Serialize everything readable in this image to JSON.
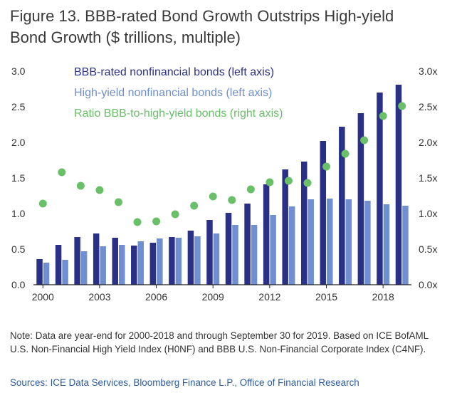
{
  "title_line1": "Figure 13. BBB-rated Bond Growth Outstrips High-yield",
  "title_line2": "Bond Growth ($ trillions, multiple)",
  "note": "Note: Data are year-end for 2000-2018 and through September 30 for 2019. Based on ICE BofAML U.S. Non-Financial High Yield Index (H0NF) and BBB U.S. Non-Financial Corporate Index (C4NF).",
  "sources": "Sources: ICE Data Services, Bloomberg Finance L.P., Office of Financial Research",
  "colors": {
    "bbb": "#2b3087",
    "hy": "#6f8fd0",
    "ratio": "#6abf69",
    "axis_text": "#333333",
    "baseline": "#222222"
  },
  "chart_data": {
    "type": "bar",
    "categories": [
      2000,
      2001,
      2002,
      2003,
      2004,
      2005,
      2006,
      2007,
      2008,
      2009,
      2010,
      2011,
      2012,
      2013,
      2014,
      2015,
      2016,
      2017,
      2018,
      2019
    ],
    "x_tick_labels": [
      "2000",
      "2003",
      "2006",
      "2009",
      "2012",
      "2015",
      "2018"
    ],
    "series": [
      {
        "name": "BBB-rated nonfinancial bonds (left axis)",
        "type": "bar",
        "axis": "left",
        "values": [
          0.36,
          0.56,
          0.67,
          0.72,
          0.66,
          0.55,
          0.59,
          0.67,
          0.76,
          0.91,
          1.01,
          1.14,
          1.41,
          1.62,
          1.73,
          2.02,
          2.22,
          2.41,
          2.7,
          2.81
        ]
      },
      {
        "name": "High-yield nonfinancial bonds (left axis)",
        "type": "bar",
        "axis": "left",
        "values": [
          0.31,
          0.35,
          0.47,
          0.54,
          0.56,
          0.61,
          0.65,
          0.66,
          0.68,
          0.72,
          0.84,
          0.84,
          0.98,
          1.1,
          1.2,
          1.21,
          1.2,
          1.18,
          1.13,
          1.11
        ]
      },
      {
        "name": "Ratio BBB-to-high-yield bonds (right axis)",
        "type": "scatter",
        "axis": "right",
        "values": [
          1.14,
          1.58,
          1.39,
          1.33,
          1.16,
          0.88,
          0.89,
          0.99,
          1.11,
          1.24,
          1.19,
          1.34,
          1.44,
          1.46,
          1.43,
          1.66,
          1.84,
          2.03,
          2.37,
          2.51
        ]
      }
    ],
    "left_axis": {
      "ylim": [
        0,
        3.0
      ],
      "ticks": [
        "0.0",
        "0.5",
        "1.0",
        "1.5",
        "2.0",
        "2.5",
        "3.0"
      ]
    },
    "right_axis": {
      "ylim": [
        0,
        3.0
      ],
      "ticks": [
        "0.0x",
        "0.5x",
        "1.0x",
        "1.5x",
        "2.0x",
        "2.5x",
        "3.0x"
      ]
    },
    "grid": false,
    "legend_position": "top-left"
  }
}
